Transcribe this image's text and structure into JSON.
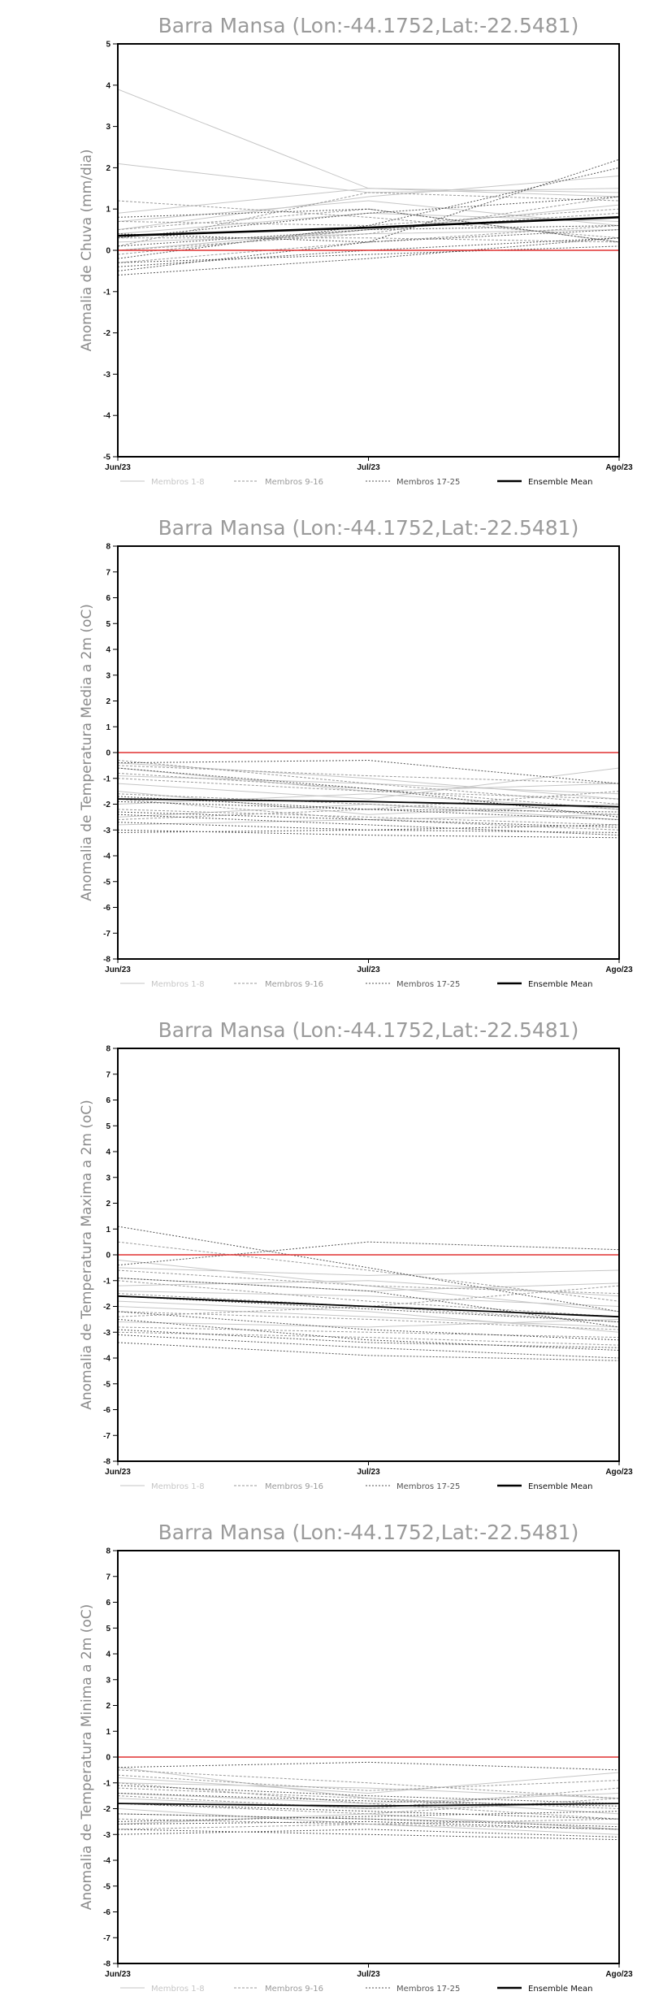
{
  "legend": [
    {
      "label": "Membros 1-8",
      "color": "#c6c6c6",
      "dash": "none",
      "width": 1
    },
    {
      "label": "Membros 9-16",
      "color": "#9a9a9a",
      "dash": "3,2",
      "width": 1
    },
    {
      "label": "Membros 17-25",
      "color": "#555555",
      "dash": "2,2",
      "width": 1
    },
    {
      "label": "Ensemble Mean",
      "color": "#000000",
      "dash": "none",
      "width": 2.4
    }
  ],
  "chart_data": [
    {
      "type": "line",
      "title": "Barra Mansa (Lon:-44.1752,Lat:-22.5481)",
      "ylabel": "Anomalia de Chuva (mm/dia)",
      "x": [
        "Jun/23",
        "Jul/23",
        "Ago/23"
      ],
      "ylim": [
        -5,
        5
      ],
      "yticks": [
        -5,
        -4,
        -3,
        -2,
        -1,
        0,
        1,
        2,
        3,
        4,
        5
      ],
      "ensemble_mean": [
        0.35,
        0.55,
        0.8
      ],
      "zero_line": [
        0,
        0,
        0
      ],
      "members_1_8": [
        [
          3.9,
          1.5,
          1.3
        ],
        [
          2.1,
          1.4,
          1.5
        ],
        [
          0.9,
          1.5,
          1.4
        ],
        [
          0.5,
          1.3,
          1.8
        ],
        [
          0.4,
          0.9,
          0.7
        ],
        [
          0.2,
          0.4,
          0.5
        ],
        [
          0.0,
          0.5,
          1.1
        ],
        [
          0.7,
          1.2,
          0.6
        ]
      ],
      "members_9_16": [
        [
          1.2,
          0.8,
          0.3
        ],
        [
          0.7,
          0.6,
          1.0
        ],
        [
          0.3,
          0.3,
          0.2
        ],
        [
          0.1,
          1.4,
          1.2
        ],
        [
          -0.1,
          0.5,
          0.9
        ],
        [
          -0.3,
          0.2,
          0.6
        ],
        [
          0.5,
          1.0,
          0.2
        ],
        [
          0.0,
          0.4,
          1.3
        ]
      ],
      "members_17_25": [
        [
          -0.5,
          0.2,
          2.2
        ],
        [
          -0.2,
          0.6,
          2.0
        ],
        [
          0.3,
          0.9,
          1.3
        ],
        [
          -0.4,
          0.0,
          0.3
        ],
        [
          0.8,
          1.0,
          0.2
        ],
        [
          -0.3,
          -0.1,
          0.1
        ],
        [
          0.1,
          0.5,
          0.6
        ],
        [
          -0.6,
          -0.2,
          0.3
        ],
        [
          0.4,
          0.2,
          0.5
        ]
      ]
    },
    {
      "type": "line",
      "title": "Barra Mansa (Lon:-44.1752,Lat:-22.5481)",
      "ylabel": "Anomalia de Temperatura Media a 2m (oC)",
      "x": [
        "Jun/23",
        "Jul/23",
        "Ago/23"
      ],
      "ylim": [
        -8,
        8
      ],
      "yticks": [
        -8,
        -7,
        -6,
        -5,
        -4,
        -3,
        -2,
        -1,
        0,
        1,
        2,
        3,
        4,
        5,
        6,
        7,
        8
      ],
      "ensemble_mean": [
        -1.8,
        -1.9,
        -2.1
      ],
      "zero_line": [
        0,
        0,
        0
      ],
      "members_1_8": [
        [
          -0.6,
          -1.5,
          -1.2
        ],
        [
          -1.2,
          -1.8,
          -0.6
        ],
        [
          -2.0,
          -1.6,
          -2.2
        ],
        [
          -0.9,
          -1.2,
          -1.6
        ],
        [
          -2.5,
          -2.0,
          -2.6
        ],
        [
          -1.5,
          -2.4,
          -2.0
        ],
        [
          -0.4,
          -1.0,
          -1.8
        ],
        [
          -2.8,
          -2.6,
          -2.4
        ]
      ],
      "members_9_16": [
        [
          -0.3,
          -1.2,
          -2.0
        ],
        [
          -1.0,
          -1.5,
          -1.8
        ],
        [
          -2.2,
          -2.5,
          -2.8
        ],
        [
          -1.6,
          -2.0,
          -2.4
        ],
        [
          -0.8,
          -1.4,
          -2.2
        ],
        [
          -2.6,
          -2.2,
          -1.5
        ],
        [
          -1.8,
          -2.6,
          -3.0
        ],
        [
          -0.5,
          -0.9,
          -1.2
        ]
      ],
      "members_17_25": [
        [
          -0.4,
          -0.3,
          -1.2
        ],
        [
          -2.3,
          -2.6,
          -2.9
        ],
        [
          -3.0,
          -3.2,
          -3.3
        ],
        [
          -0.6,
          -1.4,
          -2.5
        ],
        [
          -1.7,
          -2.2,
          -2.3
        ],
        [
          -2.7,
          -3.0,
          -3.1
        ],
        [
          -1.9,
          -2.2,
          -2.6
        ],
        [
          -3.1,
          -3.0,
          -2.8
        ],
        [
          -2.4,
          -2.8,
          -3.2
        ]
      ]
    },
    {
      "type": "line",
      "title": "Barra Mansa (Lon:-44.1752,Lat:-22.5481)",
      "ylabel": "Anomalia de Temperatura Maxima a 2m (oC)",
      "x": [
        "Jun/23",
        "Jul/23",
        "Ago/23"
      ],
      "ylim": [
        -8,
        8
      ],
      "yticks": [
        -8,
        -7,
        -6,
        -5,
        -4,
        -3,
        -2,
        -1,
        0,
        1,
        2,
        3,
        4,
        5,
        6,
        7,
        8
      ],
      "ensemble_mean": [
        -1.6,
        -2.0,
        -2.4
      ],
      "zero_line": [
        0,
        0,
        0
      ],
      "members_1_8": [
        [
          -0.5,
          -0.8,
          -0.6
        ],
        [
          -1.4,
          -1.6,
          -2.0
        ],
        [
          -0.9,
          -1.4,
          -1.1
        ],
        [
          -2.0,
          -2.4,
          -2.8
        ],
        [
          -1.2,
          -1.0,
          -1.6
        ],
        [
          -2.6,
          -2.8,
          -2.5
        ],
        [
          -0.2,
          -1.2,
          -2.2
        ],
        [
          -1.8,
          -2.2,
          -3.0
        ]
      ],
      "members_9_16": [
        [
          0.5,
          -0.6,
          -1.8
        ],
        [
          -1.0,
          -1.8,
          -2.4
        ],
        [
          -2.2,
          -2.5,
          -2.9
        ],
        [
          -3.0,
          -3.2,
          -3.5
        ],
        [
          -1.5,
          -2.0,
          -1.2
        ],
        [
          -2.4,
          -2.0,
          -2.6
        ],
        [
          -0.6,
          -1.2,
          -1.5
        ],
        [
          -2.8,
          -3.0,
          -3.2
        ]
      ],
      "members_17_25": [
        [
          1.1,
          -0.5,
          -2.2
        ],
        [
          -0.4,
          0.5,
          0.2
        ],
        [
          -2.5,
          -3.3,
          -3.7
        ],
        [
          -3.4,
          -3.9,
          -4.1
        ],
        [
          -2.9,
          -3.4,
          -3.6
        ],
        [
          -1.6,
          -2.1,
          -2.6
        ],
        [
          -3.1,
          -3.6,
          -4.0
        ],
        [
          -2.2,
          -2.9,
          -3.3
        ],
        [
          -0.9,
          -1.4,
          -2.8
        ]
      ]
    },
    {
      "type": "line",
      "title": "Barra Mansa (Lon:-44.1752,Lat:-22.5481)",
      "ylabel": "Anomalia de Temperatura Minima a 2m (oC)",
      "x": [
        "Jun/23",
        "Jul/23",
        "Ago/23"
      ],
      "ylim": [
        -8,
        8
      ],
      "yticks": [
        -8,
        -7,
        -6,
        -5,
        -4,
        -3,
        -2,
        -1,
        0,
        1,
        2,
        3,
        4,
        5,
        6,
        7,
        8
      ],
      "ensemble_mean": [
        -1.8,
        -1.9,
        -1.8
      ],
      "zero_line": [
        0,
        0,
        0
      ],
      "members_1_8": [
        [
          -0.8,
          -1.4,
          -0.6
        ],
        [
          -1.6,
          -2.0,
          -1.8
        ],
        [
          -2.2,
          -2.4,
          -2.6
        ],
        [
          -1.0,
          -1.2,
          -1.6
        ],
        [
          -2.6,
          -2.2,
          -2.8
        ],
        [
          -1.4,
          -1.8,
          -1.4
        ],
        [
          -0.4,
          -1.6,
          -2.2
        ],
        [
          -2.0,
          -2.6,
          -3.0
        ]
      ],
      "members_9_16": [
        [
          -0.5,
          -1.0,
          -1.6
        ],
        [
          -1.2,
          -1.6,
          -2.0
        ],
        [
          -2.4,
          -2.6,
          -2.8
        ],
        [
          -1.8,
          -2.2,
          -1.6
        ],
        [
          -1.0,
          -1.8,
          -2.4
        ],
        [
          -2.8,
          -2.6,
          -2.4
        ],
        [
          -1.5,
          -2.0,
          -1.2
        ],
        [
          -0.7,
          -1.3,
          -0.9
        ]
      ],
      "members_17_25": [
        [
          -0.4,
          -0.2,
          -0.5
        ],
        [
          -2.2,
          -2.4,
          -2.7
        ],
        [
          -3.0,
          -2.8,
          -3.1
        ],
        [
          -1.4,
          -1.7,
          -1.9
        ],
        [
          -2.5,
          -2.3,
          -2.1
        ],
        [
          -2.8,
          -3.0,
          -3.2
        ],
        [
          -1.8,
          -2.1,
          -2.4
        ],
        [
          -2.6,
          -2.5,
          -2.8
        ],
        [
          -1.1,
          -1.5,
          -1.8
        ]
      ]
    }
  ]
}
